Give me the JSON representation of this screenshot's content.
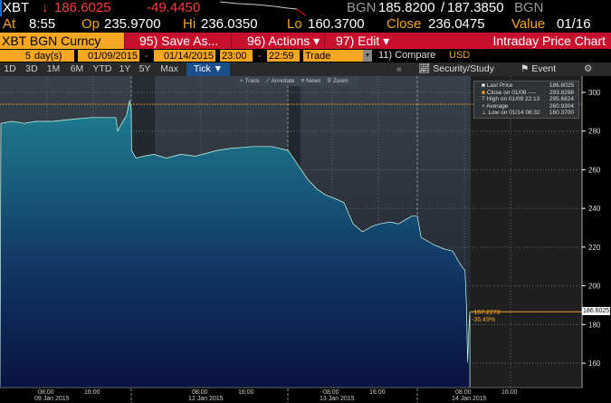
{
  "quote": {
    "ticker": "XBT",
    "arrow": "↓",
    "last": "186.6025",
    "change": "-49.4450",
    "source": "BGN",
    "bid": "185.8200",
    "ask": "187.3850",
    "source2": "BGN",
    "at_label": "At",
    "at": "8:55",
    "op_label": "Op",
    "op": "235.9700",
    "hi_label": "Hi",
    "hi": "236.0350",
    "lo_label": "Lo",
    "lo": "160.3700",
    "close_label": "Close",
    "close": "236.0475",
    "value_label": "Value",
    "value": "01/16"
  },
  "toolbar": {
    "security": "XBT BGN Curncy",
    "save": "95) Save As...",
    "actions": "96) Actions ▾",
    "edit": "97) Edit ▾",
    "title": "Intraday Price Chart"
  },
  "params": {
    "days": "5",
    "days_unit": "day(s)",
    "start": "01/09/2015",
    "dash": "-",
    "end": "01/14/2015",
    "t_start": "23:00",
    "dash2": "-",
    "t_end": "22:59",
    "field": "Trade",
    "compare": "11) Compare",
    "currency": "USD"
  },
  "tabs": [
    "1D",
    "3D",
    "1M",
    "6M",
    "YTD",
    "1Y",
    "5Y",
    "Max",
    "Tick ▼"
  ],
  "right_tabs": {
    "collapse": "«",
    "security_study": "Security/Study",
    "event": "Event"
  },
  "chart_tools": [
    "+ Track",
    "⟋ Annotate",
    "≡ News",
    "⚲ Zoom"
  ],
  "legend": [
    {
      "label": "Last Price",
      "value": "186.6025"
    },
    {
      "label": "Close on 01/08 ----",
      "value": "293.8298"
    },
    {
      "label": "High on 01/09 22:13",
      "value": "295.6824"
    },
    {
      "label": "Average",
      "value": "260.9304"
    },
    {
      "label": "Low on 01/14 08:32",
      "value": "160.3700"
    }
  ],
  "annotation": {
    "change": "-107.2273",
    "pct": "-36.49%",
    "last_tag": "186.6025"
  },
  "colors": {
    "orange": "#f5a623",
    "red": "#c8102e",
    "area_top": "#1f8090",
    "area_bottom": "#0a1240"
  },
  "chart_data": {
    "type": "area",
    "ylim": [
      150,
      305
    ],
    "yticks": [
      "300",
      "280",
      "260",
      "240",
      "220",
      "200",
      "180",
      "160"
    ],
    "xticks": [
      {
        "time": "08:00",
        "day": "09 Jan 2015"
      },
      {
        "time": "16:00"
      },
      {
        "time": "08:00",
        "day": "12 Jan 2015"
      },
      {
        "time": "16:00"
      },
      {
        "time": "08:00",
        "day": "13 Jan 2015"
      },
      {
        "time": "16:00"
      },
      {
        "time": "08:00",
        "day": "14 Jan 2015"
      },
      {
        "time": "16:00"
      }
    ],
    "reference_line": 293.8298,
    "last": 186.6025,
    "points": [
      [
        "09 00:00",
        284
      ],
      [
        "09 02:00",
        285
      ],
      [
        "09 04:00",
        284
      ],
      [
        "09 06:00",
        285
      ],
      [
        "09 09:00",
        285
      ],
      [
        "09 12:00",
        286
      ],
      [
        "09 15:30",
        287
      ],
      [
        "09 18:00",
        287
      ],
      [
        "09 19:50",
        287
      ],
      [
        "09 20:10",
        280
      ],
      [
        "09 20:40",
        283
      ],
      [
        "09 21:40",
        288
      ],
      [
        "09 22:13",
        295.68
      ],
      [
        "09 22:30",
        291
      ],
      [
        "11 20:00",
        270
      ],
      [
        "11 20:45",
        266
      ],
      [
        "11 22:00",
        267
      ],
      [
        "11 23:50",
        268
      ],
      [
        "12 02:00",
        266
      ],
      [
        "12 04:30",
        268
      ],
      [
        "12 07:00",
        267
      ],
      [
        "12 10:45",
        270
      ],
      [
        "12 13:00",
        271
      ],
      [
        "12 17:00",
        272
      ],
      [
        "12 20:10",
        272
      ],
      [
        "12 23:00",
        270
      ],
      [
        "13 02:10",
        262
      ],
      [
        "13 03:45",
        255
      ],
      [
        "13 05:20",
        250
      ],
      [
        "13 06:50",
        247
      ],
      [
        "13 08:30",
        245
      ],
      [
        "13 10:00",
        243
      ],
      [
        "13 11:35",
        232
      ],
      [
        "13 13:10",
        228
      ],
      [
        "13 15:00",
        231
      ],
      [
        "13 16:15",
        232
      ],
      [
        "13 18:00",
        233
      ],
      [
        "13 19:25",
        232
      ],
      [
        "13 21:40",
        236
      ],
      [
        "13 22:40",
        236
      ],
      [
        "14 00:30",
        225
      ],
      [
        "14 02:50",
        221
      ],
      [
        "14 04:30",
        219
      ],
      [
        "14 05:55",
        218
      ],
      [
        "14 07:30",
        210
      ],
      [
        "14 08:05",
        208
      ],
      [
        "14 08:20",
        190
      ],
      [
        "14 08:32",
        160.37
      ],
      [
        "14 08:45",
        178
      ],
      [
        "14 08:55",
        186.6025
      ]
    ]
  }
}
